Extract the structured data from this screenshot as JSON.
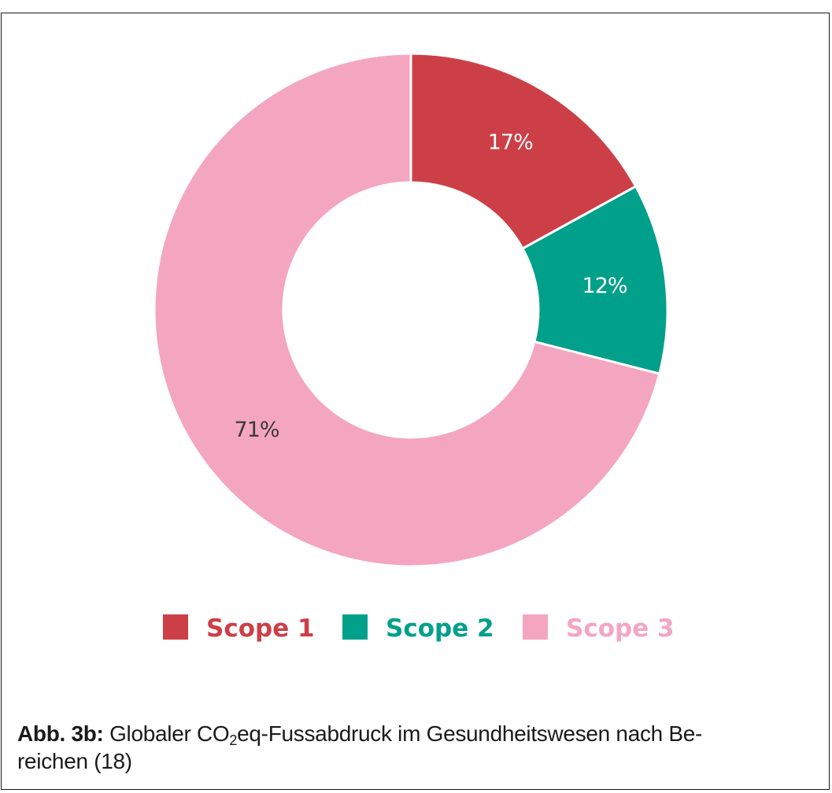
{
  "chart_data": {
    "type": "pie",
    "donut": true,
    "categories": [
      "Scope 1",
      "Scope 2",
      "Scope 3"
    ],
    "values": [
      17,
      12,
      71
    ],
    "value_labels": [
      "17%",
      "12%",
      "71%"
    ],
    "colors": [
      "#cd3f47",
      "#00a08a",
      "#f4a6c0"
    ],
    "legend_position": "bottom",
    "start_angle_deg": 0,
    "direction": "clockwise"
  },
  "caption": {
    "label": "Abb. 3b:",
    "text_before_sub": "Globaler CO",
    "subscript": "2",
    "text_after_sub": "eq-Fussabdruck im Gesundheitswesen nach Be-",
    "line2": "reichen (18)"
  }
}
